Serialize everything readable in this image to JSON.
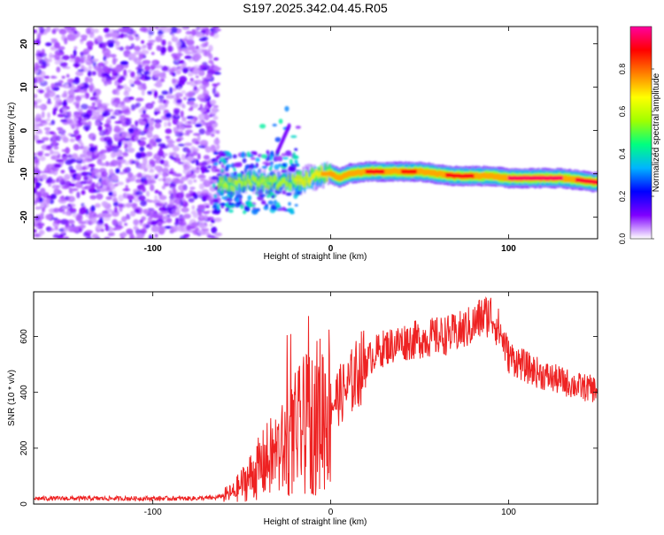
{
  "figure": {
    "title": "S197.2025.342.04.45.R05"
  },
  "chart_data": [
    {
      "type": "heatmap",
      "title": "S197.2025.342.04.45.R05",
      "xlabel": "Height of straight line (km)",
      "ylabel": "Frequency (Hz)",
      "xlim": [
        -167,
        150
      ],
      "ylim": [
        -25,
        24
      ],
      "x_ticks": [
        -100,
        0,
        100
      ],
      "y_ticks": [
        -20,
        -10,
        0,
        10,
        20
      ],
      "ridge": {
        "description_points_x": [
          -63,
          -55,
          -45,
          -35,
          -25,
          -15,
          -5,
          0,
          5,
          10,
          20,
          30,
          40,
          50,
          60,
          70,
          80,
          90,
          100,
          110,
          120,
          130,
          140,
          150
        ],
        "frequency_hz": [
          -12,
          -12.5,
          -11.5,
          -12,
          -12,
          -11.5,
          -10,
          -10,
          -11,
          -10,
          -9.5,
          -9.5,
          -9.5,
          -9.5,
          -10,
          -10.5,
          -10.5,
          -10.5,
          -11,
          -11,
          -11,
          -11,
          -11.5,
          -12
        ]
      },
      "colorbar": {
        "label": "Normalized spectral amplitude",
        "range": [
          0,
          1
        ],
        "ticks": [
          0.0,
          0.2,
          0.4,
          0.6,
          0.8
        ],
        "tick_labels": [
          "0.0",
          "0.2",
          "0.4",
          "0.6",
          "0.8"
        ],
        "colormap": [
          "#ffffff",
          "#7f00ff",
          "#0000ff",
          "#00b4ff",
          "#00ff80",
          "#a0ff00",
          "#ffff00",
          "#ff8000",
          "#ff0000",
          "#ff00a0"
        ]
      }
    },
    {
      "type": "line",
      "xlabel": "Height of straight line (km)",
      "ylabel": "SNR (10 * v/v)",
      "xlim": [
        -167,
        150
      ],
      "ylim": [
        0,
        760
      ],
      "x_ticks": [
        -100,
        0,
        100
      ],
      "y_ticks": [
        0,
        200,
        400,
        600
      ],
      "series": [
        {
          "name": "SNR",
          "color": "#ee2222",
          "x": [
            -167,
            -140,
            -110,
            -80,
            -65,
            -55,
            -50,
            -45,
            -40,
            -35,
            -30,
            -25,
            -20,
            -15,
            -10,
            -5,
            0,
            5,
            10,
            15,
            20,
            25,
            30,
            40,
            50,
            60,
            70,
            80,
            85,
            90,
            95,
            100,
            110,
            120,
            130,
            140,
            150
          ],
          "values": [
            20,
            20,
            20,
            20,
            22,
            40,
            70,
            100,
            130,
            160,
            180,
            200,
            250,
            280,
            300,
            330,
            360,
            390,
            420,
            470,
            510,
            540,
            560,
            580,
            590,
            600,
            610,
            640,
            670,
            680,
            620,
            530,
            490,
            460,
            440,
            420,
            410
          ]
        }
      ]
    }
  ]
}
